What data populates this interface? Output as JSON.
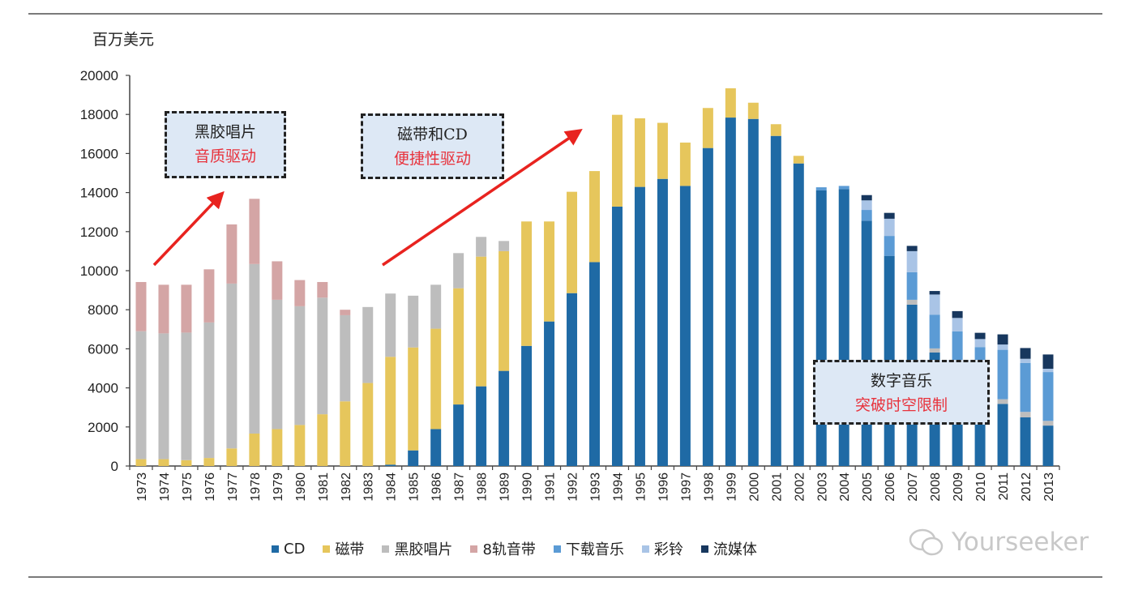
{
  "chart_data": {
    "type": "bar",
    "stacked": true,
    "ylabel": "百万美元",
    "ylim": [
      0,
      20000
    ],
    "yticks": [
      0,
      2000,
      4000,
      6000,
      8000,
      10000,
      12000,
      14000,
      16000,
      18000,
      20000
    ],
    "grid": false,
    "legend_position": "bottom",
    "categories": [
      "1973",
      "1974",
      "1975",
      "1976",
      "1977",
      "1978",
      "1979",
      "1980",
      "1981",
      "1982",
      "1983",
      "1984",
      "1985",
      "1986",
      "1987",
      "1988",
      "1989",
      "1990",
      "1991",
      "1992",
      "1993",
      "1994",
      "1995",
      "1996",
      "1997",
      "1998",
      "1999",
      "2000",
      "2001",
      "2002",
      "2003",
      "2004",
      "2005",
      "2006",
      "2007",
      "2008",
      "2009",
      "2010",
      "2011",
      "2012",
      "2013"
    ],
    "series": [
      {
        "name": "CD",
        "color": "#1f6aa5",
        "values": [
          0,
          0,
          0,
          0,
          0,
          0,
          0,
          0,
          0,
          0,
          0,
          70,
          800,
          1890,
          3150,
          4080,
          4870,
          6150,
          7400,
          8850,
          10440,
          13280,
          14290,
          14700,
          14340,
          16280,
          17840,
          17770,
          16900,
          15490,
          14110,
          14180,
          12560,
          10760,
          8260,
          5810,
          4300,
          3400,
          3180,
          2490,
          2070
        ]
      },
      {
        "name": "磁带",
        "color": "#e6c65c",
        "values": [
          350,
          350,
          300,
          410,
          900,
          1660,
          1890,
          2100,
          2650,
          3310,
          4250,
          5520,
          5270,
          5140,
          5950,
          6640,
          6130,
          6370,
          5120,
          5190,
          4660,
          4700,
          3510,
          2870,
          2220,
          2050,
          1500,
          830,
          600,
          390,
          0,
          0,
          0,
          0,
          0,
          0,
          0,
          0,
          0,
          0,
          0
        ]
      },
      {
        "name": "黑胶唱片",
        "color": "#bdbdbd",
        "values": [
          6550,
          6440,
          6530,
          6940,
          8440,
          8680,
          6620,
          6080,
          5970,
          4410,
          3890,
          3240,
          2650,
          2250,
          1800,
          1010,
          520,
          0,
          0,
          0,
          0,
          0,
          0,
          0,
          0,
          0,
          0,
          0,
          0,
          0,
          0,
          0,
          0,
          0,
          250,
          210,
          200,
          200,
          240,
          280,
          240
        ]
      },
      {
        "name": "8轨音带",
        "color": "#d4a5a5",
        "values": [
          2520,
          2490,
          2450,
          2720,
          3030,
          3340,
          1970,
          1340,
          800,
          280,
          0,
          0,
          0,
          0,
          0,
          0,
          0,
          0,
          0,
          0,
          0,
          0,
          0,
          0,
          0,
          0,
          0,
          0,
          0,
          0,
          0,
          0,
          0,
          0,
          0,
          0,
          0,
          0,
          0,
          0,
          0
        ]
      },
      {
        "name": "下载音乐",
        "color": "#5b9bd5",
        "values": [
          0,
          0,
          0,
          0,
          0,
          0,
          0,
          0,
          0,
          0,
          0,
          0,
          0,
          0,
          0,
          0,
          0,
          0,
          0,
          0,
          0,
          0,
          0,
          0,
          0,
          0,
          0,
          0,
          0,
          0,
          160,
          160,
          550,
          1020,
          1410,
          1730,
          2390,
          2490,
          2530,
          2510,
          2500
        ]
      },
      {
        "name": "彩铃",
        "color": "#a9c4e6",
        "values": [
          0,
          0,
          0,
          0,
          0,
          0,
          0,
          0,
          0,
          0,
          0,
          0,
          0,
          0,
          0,
          0,
          0,
          0,
          0,
          0,
          0,
          0,
          0,
          0,
          0,
          0,
          0,
          0,
          0,
          0,
          0,
          0,
          490,
          880,
          1080,
          1030,
          690,
          410,
          270,
          210,
          170
        ]
      },
      {
        "name": "流媒体",
        "color": "#17375e",
        "values": [
          0,
          0,
          0,
          0,
          0,
          0,
          0,
          0,
          0,
          0,
          0,
          0,
          0,
          0,
          0,
          0,
          0,
          0,
          0,
          0,
          0,
          0,
          0,
          0,
          0,
          0,
          0,
          0,
          0,
          0,
          0,
          0,
          270,
          300,
          270,
          180,
          350,
          320,
          520,
          550,
          730
        ]
      }
    ],
    "annotations": [
      {
        "line1": "黑胶唱片",
        "line2": "音质驱动"
      },
      {
        "line1": "磁带和CD",
        "line2": "便捷性驱动"
      },
      {
        "line1": "数字音乐",
        "line2": "突破时空限制"
      }
    ]
  },
  "watermark": "Yourseeker",
  "colors": {
    "arrow": "#e8231f",
    "note_bg": "#dde8f5",
    "note_highlight": "#e8323c"
  }
}
